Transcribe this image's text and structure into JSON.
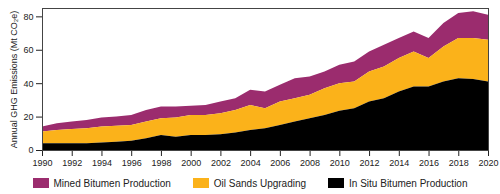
{
  "chart_data": {
    "type": "area",
    "stacked": true,
    "ylabel": "Annual GHG Emissions (Mt CO₂e)",
    "x": [
      1990,
      1991,
      1992,
      1993,
      1994,
      1995,
      1996,
      1997,
      1998,
      1999,
      2000,
      2001,
      2002,
      2003,
      2004,
      2005,
      2006,
      2007,
      2008,
      2009,
      2010,
      2011,
      2012,
      2013,
      2014,
      2015,
      2016,
      2017,
      2018,
      2019,
      2020
    ],
    "xlim": [
      1990,
      2020
    ],
    "xticks": [
      1990,
      1992,
      1994,
      1996,
      1998,
      2000,
      2002,
      2004,
      2006,
      2008,
      2010,
      2012,
      2014,
      2016,
      2018,
      2020
    ],
    "ylim": [
      0,
      85
    ],
    "yticks": [
      0,
      20,
      40,
      60,
      80
    ],
    "grid": false,
    "legend": "bottom",
    "series": [
      {
        "name": "Mined Bitumen Production",
        "color": "#9b2c6e",
        "values": [
          3,
          4,
          4.5,
          5,
          5.5,
          5.5,
          6,
          7,
          7,
          6.5,
          5.5,
          6,
          7,
          7,
          9,
          10,
          10,
          12,
          11,
          10,
          11,
          12,
          12,
          13,
          12,
          12,
          12,
          14,
          15,
          16,
          15
        ]
      },
      {
        "name": "Oil Sands Upgrading",
        "color": "#fbb21a",
        "values": [
          7,
          8,
          8.5,
          9,
          9.5,
          9.5,
          9.5,
          10,
          10,
          11.5,
          12,
          12,
          12.5,
          13.5,
          15,
          12,
          14,
          14,
          14,
          16,
          16.5,
          16,
          18,
          19,
          20,
          21,
          17,
          21,
          24,
          24.5,
          25
        ]
      },
      {
        "name": "In Situ Bitumen Production",
        "color": "#000000",
        "values": [
          4,
          4,
          4,
          4,
          4.5,
          5,
          5.5,
          7,
          9,
          8,
          9,
          9,
          9.5,
          10.5,
          12,
          13,
          15,
          17,
          19,
          21,
          23.5,
          25,
          29,
          31,
          35,
          38,
          38,
          41,
          43,
          42.5,
          41
        ]
      }
    ]
  }
}
